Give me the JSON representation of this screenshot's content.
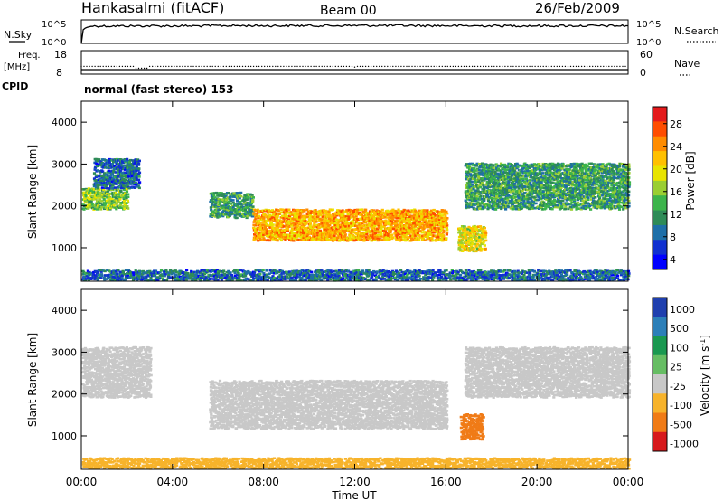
{
  "header": {
    "station": "Hankasalmi (fitACF)",
    "beam": "Beam 00",
    "date": "26/Feb/2009"
  },
  "nsky_panel": {
    "left_label": "N.Sky",
    "left_ticks": [
      "10^5",
      "10^0"
    ],
    "right_label": "N.Search",
    "right_ticks": [
      "10^5",
      "10^0"
    ]
  },
  "freq_panel": {
    "left_label_1": "Freq.",
    "left_label_2": "[MHz]",
    "left_ticks": [
      "18",
      "8"
    ],
    "right_label": "Nave",
    "right_ticks": [
      "60",
      "0"
    ]
  },
  "cpid": {
    "label": "CPID",
    "value": "normal (fast stereo) 153"
  },
  "x_axis": {
    "title": "Time UT",
    "tick_labels": [
      "00:00",
      "04:00",
      "08:00",
      "12:00",
      "16:00",
      "20:00",
      "00:00"
    ]
  },
  "y_axis": {
    "title": "Slant Range [km]",
    "tick_labels": [
      "4000",
      "3000",
      "2000",
      "1000"
    ]
  },
  "power_colorbar": {
    "title": "Power [dB]",
    "tick_labels": [
      "28",
      "24",
      "20",
      "16",
      "12",
      "8",
      "4"
    ],
    "colors": [
      "#e41a1c",
      "#ff4d00",
      "#ff8c00",
      "#ffc000",
      "#e8e400",
      "#9ace32",
      "#3cb44b",
      "#2e8b57",
      "#1e6fa8",
      "#1030d0",
      "#0000ff"
    ]
  },
  "velocity_colorbar": {
    "title": "Velocity [m s",
    "title_sup": "-1",
    "title_end": "]",
    "tick_labels": [
      "1000",
      "500",
      "100",
      "25",
      "-25",
      "-100",
      "-500",
      "-1000"
    ],
    "colors": [
      "#1f3fae",
      "#2c7fb8",
      "#1a9850",
      "#66bd63",
      "#c8c8c8",
      "#f7b32b",
      "#f07b16",
      "#d7191c"
    ]
  },
  "chart_data": [
    {
      "type": "line",
      "title": "N.Sky",
      "x": [
        0,
        0.5,
        1,
        3,
        5,
        6,
        9,
        13,
        17,
        20,
        24
      ],
      "y_scale": "log",
      "ylim": [
        1,
        100000
      ],
      "values": [
        1,
        5000,
        5000,
        5200,
        5100,
        6000,
        5800,
        6500,
        5500,
        5600,
        5400
      ]
    },
    {
      "type": "scatter",
      "title": "Freq.",
      "x": [
        0,
        2.5,
        2.7,
        2.9,
        12.0,
        24
      ],
      "ylim": [
        8,
        18
      ],
      "values": [
        11.3,
        10.6,
        10.4,
        10.6,
        11.0,
        11.3
      ]
    },
    {
      "type": "heatmap",
      "title": "Power [dB]",
      "xlim": [
        0,
        24
      ],
      "ylim": [
        200,
        4500
      ],
      "zlim": [
        0,
        30
      ],
      "regions": [
        {
          "t": [
            0.0,
            2.0
          ],
          "range": [
            1900,
            2400
          ],
          "power_db": 14
        },
        {
          "t": [
            0.5,
            2.5
          ],
          "range": [
            2400,
            3100
          ],
          "power_db": 6
        },
        {
          "t": [
            5.6,
            7.5
          ],
          "range": [
            1700,
            2300
          ],
          "power_db": 10
        },
        {
          "t": [
            7.5,
            16.0
          ],
          "range": [
            1150,
            1900
          ],
          "power_db": 22
        },
        {
          "t": [
            16.5,
            17.7
          ],
          "range": [
            900,
            1500
          ],
          "power_db": 18
        },
        {
          "t": [
            16.8,
            24.0
          ],
          "range": [
            1900,
            3000
          ],
          "power_db": 10
        },
        {
          "t": [
            0.0,
            24.0
          ],
          "range": [
            200,
            450
          ],
          "power_db": 6
        }
      ]
    },
    {
      "type": "heatmap",
      "title": "Velocity",
      "xlim": [
        0,
        24
      ],
      "ylim": [
        200,
        4500
      ],
      "zlim": [
        -1000,
        1000
      ],
      "regions": [
        {
          "t": [
            0.0,
            3.0
          ],
          "range": [
            1900,
            3100
          ],
          "velocity": 0
        },
        {
          "t": [
            5.6,
            16.0
          ],
          "range": [
            1150,
            2300
          ],
          "velocity": 0
        },
        {
          "t": [
            16.6,
            17.6
          ],
          "range": [
            900,
            1500
          ],
          "velocity": -300
        },
        {
          "t": [
            16.8,
            24.0
          ],
          "range": [
            1900,
            3100
          ],
          "velocity": 0
        },
        {
          "t": [
            0.0,
            24.0
          ],
          "range": [
            200,
            450
          ],
          "velocity": -50
        }
      ]
    }
  ]
}
